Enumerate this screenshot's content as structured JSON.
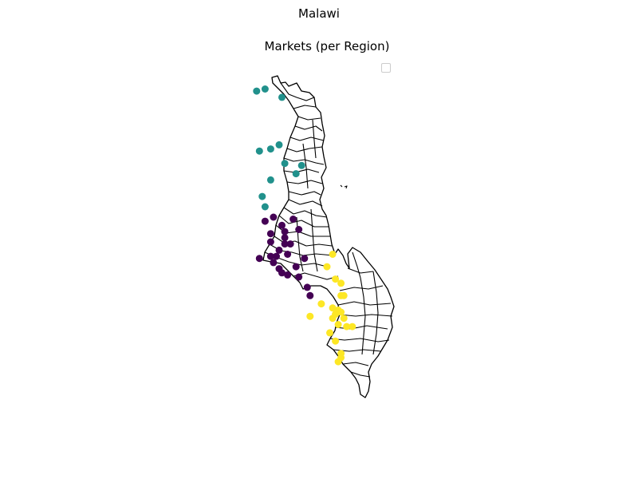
{
  "figure": {
    "suptitle": "Malawi",
    "title": "Markets (per Region)"
  },
  "legend": {
    "entries": [],
    "placement": "upper right"
  },
  "colors": {
    "northern": "#21918c",
    "central": "#440154",
    "southern": "#fde725",
    "boundary": "#000000"
  },
  "markets": {
    "northern": [
      [
        -9.55,
        33.05
      ],
      [
        -9.5,
        33.2
      ],
      [
        -9.7,
        33.5
      ],
      [
        -10.85,
        33.45
      ],
      [
        -10.95,
        33.3
      ],
      [
        -11.0,
        33.1
      ],
      [
        -11.3,
        33.55
      ],
      [
        -11.35,
        33.85
      ],
      [
        -11.55,
        33.75
      ],
      [
        -11.7,
        33.3
      ],
      [
        -12.1,
        33.15
      ],
      [
        -12.35,
        33.2
      ]
    ],
    "central": [
      [
        -12.6,
        33.35
      ],
      [
        -12.7,
        33.2
      ],
      [
        -12.65,
        33.7
      ],
      [
        -12.8,
        33.5
      ],
      [
        -12.9,
        33.8
      ],
      [
        -13.0,
        33.3
      ],
      [
        -13.1,
        33.55
      ],
      [
        -13.2,
        33.3
      ],
      [
        -13.25,
        33.65
      ],
      [
        -13.25,
        33.55
      ],
      [
        -13.4,
        33.45
      ],
      [
        -13.5,
        33.6
      ],
      [
        -13.6,
        33.1
      ],
      [
        -13.55,
        33.4
      ],
      [
        -13.7,
        33.35
      ],
      [
        -13.8,
        33.75
      ],
      [
        -13.85,
        33.45
      ],
      [
        -13.95,
        33.5
      ],
      [
        -13.6,
        33.9
      ],
      [
        -14.0,
        33.6
      ],
      [
        -14.05,
        33.8
      ],
      [
        -14.3,
        33.95
      ],
      [
        -14.5,
        34.0
      ],
      [
        -13.55,
        33.3
      ],
      [
        -12.95,
        33.55
      ]
    ],
    "southern": [
      [
        -13.5,
        34.4
      ],
      [
        -13.8,
        34.3
      ],
      [
        -14.1,
        34.45
      ],
      [
        -14.2,
        34.55
      ],
      [
        -14.5,
        34.55
      ],
      [
        -14.5,
        34.6
      ],
      [
        -14.7,
        34.2
      ],
      [
        -14.85,
        34.5
      ],
      [
        -14.9,
        34.55
      ],
      [
        -14.95,
        34.45
      ],
      [
        -15.05,
        34.4
      ],
      [
        -15.05,
        34.6
      ],
      [
        -15.2,
        34.5
      ],
      [
        -15.25,
        34.65
      ],
      [
        -15.25,
        34.75
      ],
      [
        -15.0,
        34.0
      ],
      [
        -15.4,
        34.35
      ],
      [
        -15.6,
        34.45
      ],
      [
        -15.9,
        34.55
      ],
      [
        -16.0,
        34.55
      ],
      [
        -16.1,
        34.5
      ],
      [
        -14.8,
        34.4
      ]
    ]
  }
}
